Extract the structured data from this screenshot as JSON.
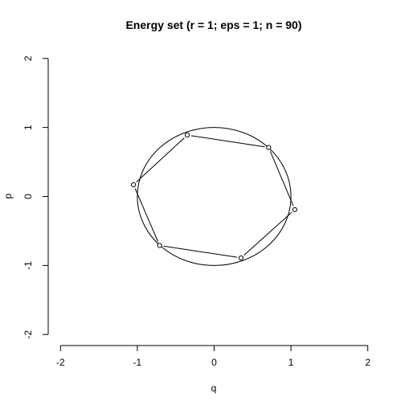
{
  "chart_data": {
    "type": "scatter",
    "title": "Energy set (r = 1; eps = 1; n = 90)",
    "xlabel": "q",
    "ylabel": "p",
    "xlim": [
      -2.16,
      2.16
    ],
    "ylim": [
      -2.16,
      2.16
    ],
    "x_ticks": [
      -2,
      -1,
      0,
      1,
      2
    ],
    "y_ticks": [
      -2,
      -1,
      0,
      1,
      2
    ],
    "x_tick_labels": [
      "-2",
      "-1",
      "0",
      "1",
      "2"
    ],
    "y_tick_labels": [
      "-2",
      "-1",
      "0",
      "1",
      "2"
    ],
    "circle": {
      "center": [
        0,
        0
      ],
      "radius": 1
    },
    "points": [
      {
        "q": 0.71,
        "p": 0.71
      },
      {
        "q": -0.35,
        "p": 0.89
      },
      {
        "q": -1.05,
        "p": 0.17
      },
      {
        "q": -0.71,
        "p": -0.71
      },
      {
        "q": 0.35,
        "p": -0.89
      },
      {
        "q": 1.05,
        "p": -0.19
      }
    ],
    "grid": false,
    "legend": "none"
  }
}
